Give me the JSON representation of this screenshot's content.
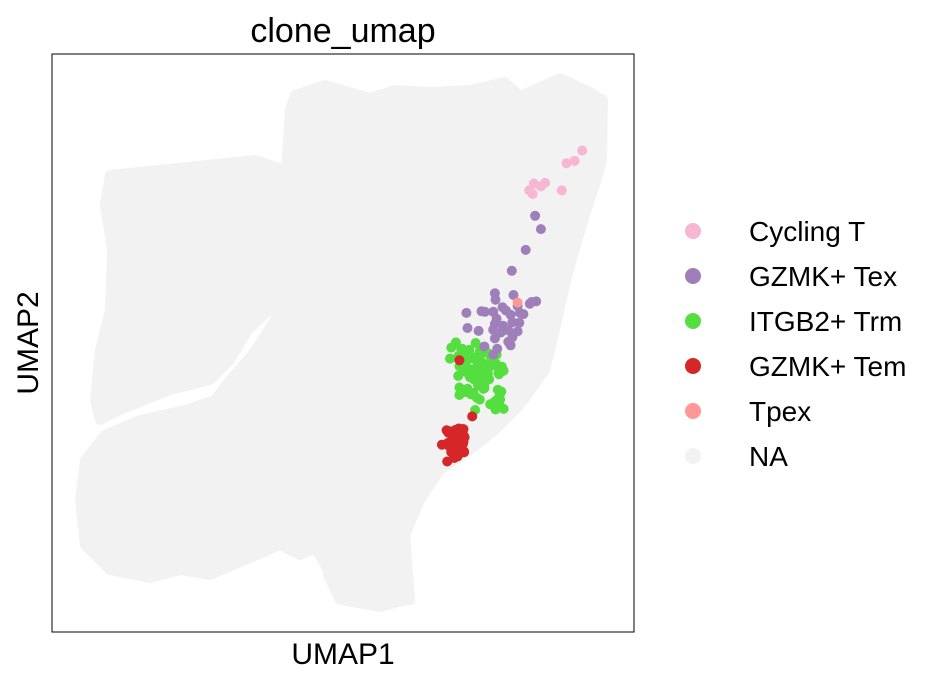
{
  "chart_data": {
    "type": "scatter",
    "title": "clone_umap",
    "xlabel": "UMAP1",
    "ylabel": "UMAP2",
    "xlim": [
      0,
      100
    ],
    "ylim": [
      0,
      100
    ],
    "grid": false,
    "legend_placement": "right",
    "background_color": "#f2f2f2",
    "series": [
      {
        "name": "Cycling T",
        "color": "#f7b6d2",
        "points": [
          [
            91.1,
            83.3
          ],
          [
            89.8,
            81.5
          ],
          [
            88.4,
            81.1
          ],
          [
            84.7,
            77.7
          ],
          [
            84.0,
            77.1
          ],
          [
            82.8,
            77.6
          ],
          [
            82.0,
            76.4
          ],
          [
            87.6,
            76.4
          ],
          [
            82.6,
            75.8
          ]
        ]
      },
      {
        "name": "GZMK+ Tex",
        "color": "#9f7fb9",
        "points": [
          [
            83.0,
            72.0
          ],
          [
            84.0,
            69.7
          ],
          [
            81.4,
            66.1
          ],
          [
            79.0,
            62.5
          ],
          [
            76.1,
            58.6
          ],
          [
            79.3,
            58.3
          ],
          [
            82.4,
            57.1
          ],
          [
            83.2,
            57.2
          ],
          [
            76.2,
            57.5
          ],
          [
            77.4,
            56.2
          ],
          [
            78.0,
            55.6
          ],
          [
            80.0,
            56.4
          ],
          [
            82.1,
            56.8
          ],
          [
            74.4,
            55.4
          ],
          [
            75.8,
            55.4
          ],
          [
            80.4,
            55.2
          ],
          [
            81.0,
            55.0
          ],
          [
            71.2,
            55.2
          ],
          [
            73.8,
            55.5
          ],
          [
            76.4,
            54.2
          ],
          [
            78.8,
            54.9
          ],
          [
            76.1,
            53.3
          ],
          [
            77.5,
            53.0
          ],
          [
            79.1,
            53.6
          ],
          [
            80.3,
            53.5
          ],
          [
            78.4,
            52.2
          ],
          [
            80.0,
            52.0
          ],
          [
            79.1,
            51.0
          ],
          [
            73.3,
            52.1
          ],
          [
            75.8,
            52.3
          ],
          [
            71.4,
            52.6
          ],
          [
            78.4,
            50.2
          ],
          [
            76.1,
            50.8
          ],
          [
            77.1,
            51.8
          ],
          [
            78.8,
            49.6
          ],
          [
            76.5,
            49.0
          ],
          [
            74.3,
            49.4
          ],
          [
            75.8,
            48.0
          ]
        ]
      },
      {
        "name": "ITGB2+ Trm",
        "color": "#55de3f",
        "points": [
          [
            69.9,
            47.8
          ],
          [
            72.8,
            50.0
          ],
          [
            70.5,
            49.0
          ],
          [
            74.3,
            49.3
          ],
          [
            73.5,
            48.6
          ],
          [
            72.4,
            47.5
          ],
          [
            73.9,
            46.6
          ],
          [
            75.4,
            47.6
          ],
          [
            71.9,
            45.4
          ],
          [
            73.6,
            45.9
          ],
          [
            72.3,
            47.5
          ],
          [
            76.4,
            48.0
          ],
          [
            74.3,
            49.0
          ],
          [
            74.5,
            45.6
          ],
          [
            70.9,
            47.4
          ],
          [
            73.0,
            47.6
          ],
          [
            77.2,
            45.5
          ],
          [
            76.3,
            46.4
          ],
          [
            72.0,
            41.1
          ],
          [
            69.4,
            50.1
          ],
          [
            76.8,
            44.6
          ],
          [
            72.4,
            44.5
          ],
          [
            68.4,
            47.3
          ],
          [
            70.0,
            46.0
          ],
          [
            74.0,
            44.8
          ],
          [
            77.6,
            45.2
          ],
          [
            69.7,
            47.5
          ],
          [
            73.5,
            45.1
          ],
          [
            77.1,
            45.7
          ],
          [
            73.5,
            47.6
          ],
          [
            75.0,
            48.2
          ],
          [
            77.3,
            45.9
          ],
          [
            73.2,
            42.7
          ],
          [
            77.3,
            45.3
          ],
          [
            71.5,
            41.5
          ],
          [
            71.5,
            45.6
          ],
          [
            73.1,
            46.3
          ],
          [
            70.0,
            42.3
          ],
          [
            70.0,
            41.0
          ],
          [
            76.9,
            39.2
          ],
          [
            76.3,
            39.7
          ],
          [
            73.0,
            40.5
          ],
          [
            76.7,
            44.8
          ],
          [
            76.0,
            39.5
          ],
          [
            72.7,
            38.4
          ],
          [
            68.6,
            49.2
          ],
          [
            76.4,
            46.0
          ],
          [
            73.9,
            46.5
          ],
          [
            73.8,
            43.9
          ],
          [
            73.6,
            42.8
          ],
          [
            75.1,
            45.8
          ],
          [
            74.3,
            42.2
          ],
          [
            76.6,
            39.3
          ],
          [
            76.2,
            38.5
          ],
          [
            68.4,
            47.3
          ],
          [
            71.6,
            44.6
          ],
          [
            73.0,
            44.2
          ],
          [
            72.5,
            43.7
          ],
          [
            71.0,
            46.0
          ],
          [
            71.7,
            48.8
          ],
          [
            72.4,
            41.4
          ],
          [
            70.8,
            45.1
          ],
          [
            69.8,
            44.3
          ],
          [
            71.8,
            44.1
          ],
          [
            71.0,
            41.5
          ],
          [
            75.3,
            39.4
          ],
          [
            74.5,
            45.6
          ],
          [
            77.0,
            45.3
          ],
          [
            73.5,
            40.2
          ],
          [
            70.3,
            49.0
          ],
          [
            70.2,
            47.0
          ],
          [
            76.0,
            39.8
          ],
          [
            76.4,
            40.1
          ],
          [
            71.7,
            47.8
          ],
          [
            75.5,
            47.1
          ],
          [
            71.7,
            47.3
          ],
          [
            73.9,
            43.0
          ],
          [
            74.1,
            42.1
          ],
          [
            76.9,
            40.9
          ],
          [
            74.9,
            44.7
          ],
          [
            77.6,
            38.6
          ],
          [
            73.9,
            44.1
          ],
          [
            77.0,
            40.2
          ],
          [
            71.1,
            46.0
          ],
          [
            76.6,
            41.9
          ],
          [
            71.4,
            42.1
          ],
          [
            73.0,
            43.7
          ],
          [
            75.1,
            43.7
          ],
          [
            70.4,
            41.9
          ],
          [
            77.2,
            41.6
          ],
          [
            74.3,
            42.5
          ],
          [
            76.0,
            46.2
          ],
          [
            73.4,
            45.2
          ],
          [
            72.7,
            47.2
          ]
        ]
      },
      {
        "name": "GZMK+ Tem",
        "color": "#d62728",
        "points": [
          [
            70.0,
            47.0
          ],
          [
            72.2,
            37.3
          ],
          [
            69.9,
            35.2
          ],
          [
            70.8,
            33.9
          ],
          [
            69.4,
            33.1
          ],
          [
            69.4,
            32.1
          ],
          [
            70.5,
            33.7
          ],
          [
            69.8,
            32.7
          ],
          [
            70.6,
            31.2
          ],
          [
            68.2,
            32.2
          ],
          [
            69.4,
            31.5
          ],
          [
            69.1,
            31.2
          ],
          [
            68.0,
            32.6
          ],
          [
            70.6,
            32.5
          ],
          [
            69.0,
            32.6
          ],
          [
            70.8,
            31.2
          ],
          [
            68.6,
            32.7
          ],
          [
            68.8,
            32.1
          ],
          [
            68.6,
            31.1
          ],
          [
            70.5,
            33.9
          ],
          [
            69.2,
            34.0
          ],
          [
            68.6,
            31.7
          ],
          [
            70.5,
            32.4
          ],
          [
            68.8,
            33.2
          ],
          [
            69.1,
            34.8
          ],
          [
            69.3,
            33.1
          ],
          [
            70.6,
            33.6
          ],
          [
            70.2,
            35.0
          ],
          [
            70.5,
            35.1
          ],
          [
            70.8,
            31.1
          ],
          [
            68.0,
            32.7
          ],
          [
            69.4,
            32.4
          ],
          [
            70.5,
            31.1
          ],
          [
            70.1,
            33.9
          ],
          [
            68.4,
            32.3
          ],
          [
            68.7,
            32.1
          ],
          [
            69.4,
            33.5
          ],
          [
            69.4,
            35.0
          ],
          [
            68.1,
            34.5
          ],
          [
            70.7,
            35.1
          ],
          [
            68.2,
            32.4
          ],
          [
            68.3,
            32.8
          ],
          [
            69.8,
            32.9
          ],
          [
            69.0,
            32.8
          ],
          [
            69.6,
            34.5
          ],
          [
            70.7,
            32.9
          ],
          [
            68.6,
            33.1
          ],
          [
            70.9,
            33.7
          ],
          [
            68.6,
            31.6
          ],
          [
            67.0,
            32.4
          ],
          [
            68.6,
            31.2
          ],
          [
            67.9,
            29.5
          ],
          [
            69.1,
            30.1
          ],
          [
            69.2,
            31.8
          ],
          [
            67.8,
            34.9
          ],
          [
            69.7,
            30.4
          ],
          [
            69.5,
            33.4
          ],
          [
            68.5,
            34.7
          ]
        ]
      },
      {
        "name": "Tpex",
        "color": "#ff9896",
        "points": [
          [
            80.0,
            57.0
          ]
        ]
      },
      {
        "name": "NA",
        "color": "#f2f2f2",
        "points": []
      }
    ]
  }
}
